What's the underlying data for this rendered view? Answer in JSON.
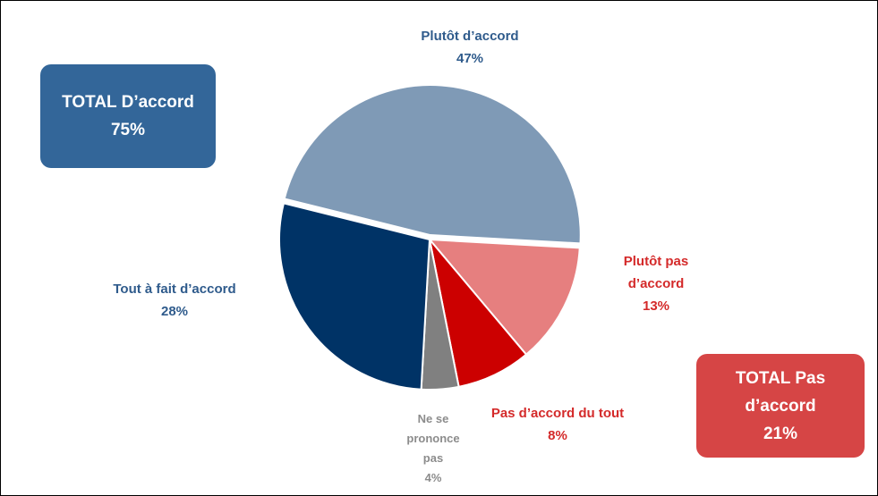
{
  "chart_data": {
    "type": "pie",
    "categories": [
      "Plutôt d’accord",
      "Plutôt pas d’accord",
      "Pas d’accord du tout",
      "Ne se prononce pas",
      "Tout à fait d’accord"
    ],
    "values": [
      47,
      13,
      8,
      4,
      28
    ],
    "value_labels": [
      "47%",
      "13%",
      "8%",
      "4%",
      "28%"
    ],
    "colors": [
      "#7f9ab6",
      "#e67f7f",
      "#cc0000",
      "#808080",
      "#003366"
    ],
    "label_colors": [
      "#2f5b8c",
      "#d42a2a",
      "#d42a2a",
      "#8c8c8c",
      "#2f5b8c"
    ],
    "annotations": [
      {
        "text": "TOTAL D’accord",
        "value_label": "75%",
        "color": "#336699"
      },
      {
        "text": "TOTAL Pas d’accord",
        "value_label": "21%",
        "color": "#d64545"
      }
    ]
  }
}
